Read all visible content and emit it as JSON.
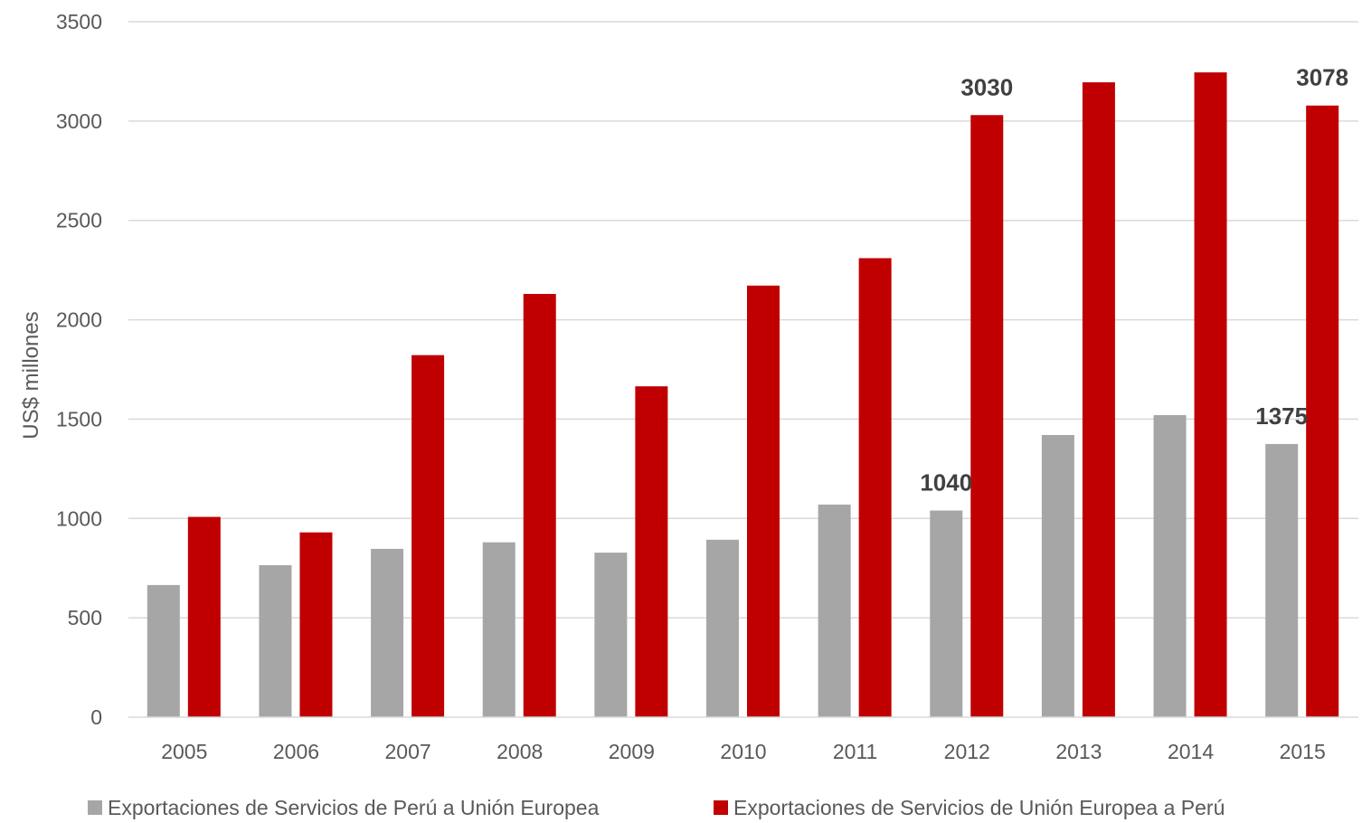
{
  "chart_data": {
    "type": "bar",
    "ylabel": "US$ millones",
    "ylim": [
      0,
      3500
    ],
    "yticks": [
      0,
      500,
      1000,
      1500,
      2000,
      2500,
      3000,
      3500
    ],
    "grid": true,
    "legend_position": "bottom",
    "categories": [
      "2005",
      "2006",
      "2007",
      "2008",
      "2009",
      "2010",
      "2011",
      "2012",
      "2013",
      "2014",
      "2015"
    ],
    "series": [
      {
        "name": "Exportaciones de Servicios de Perú a Unión Europea",
        "color": "#a6a6a6",
        "values": [
          665,
          765,
          847,
          880,
          828,
          893,
          1070,
          1040,
          1420,
          1520,
          1375
        ],
        "labeled": [
          "",
          "",
          "",
          "",
          "",
          "",
          "",
          "1040",
          "",
          "",
          "1375"
        ]
      },
      {
        "name": "Exportaciones de Servicios de Unión Europea a Perú",
        "color": "#c00000",
        "values": [
          1008,
          930,
          1822,
          2130,
          1665,
          2172,
          2310,
          3030,
          3195,
          3245,
          3078
        ],
        "labeled": [
          "",
          "",
          "",
          "",
          "",
          "",
          "",
          "3030",
          "",
          "",
          "3078"
        ]
      }
    ]
  }
}
